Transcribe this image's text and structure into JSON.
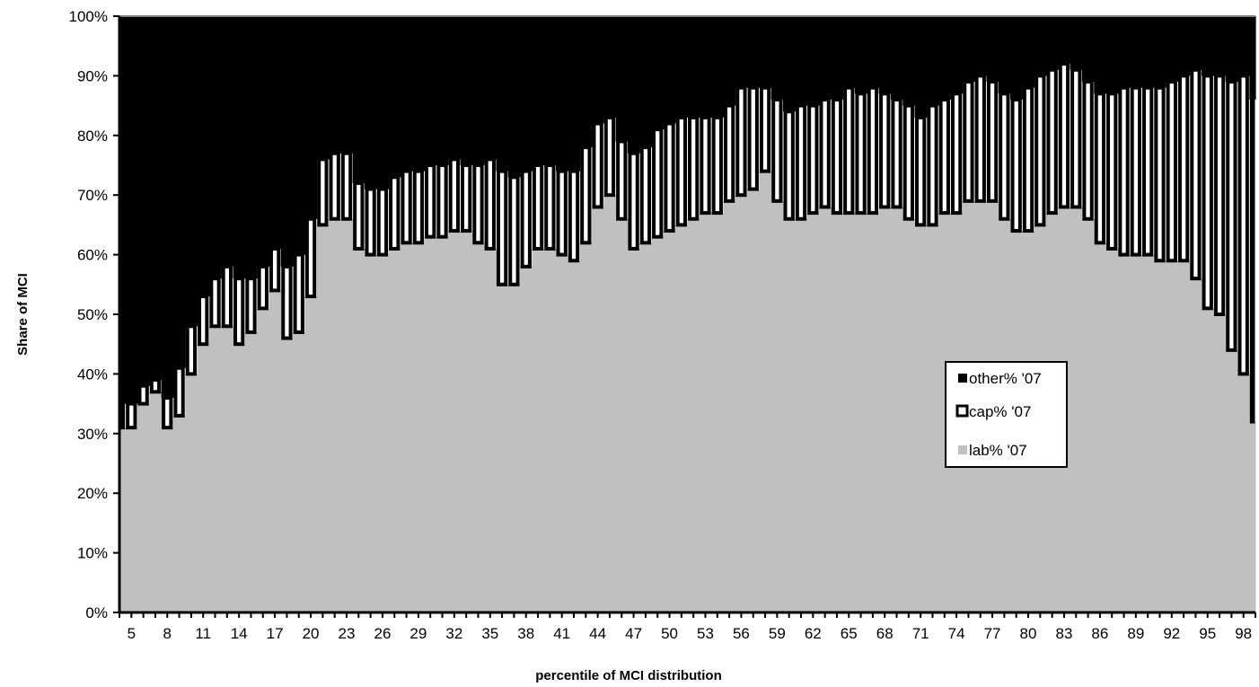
{
  "chart_data": {
    "type": "area",
    "stacked": true,
    "percent": true,
    "xlabel": "percentile of MCI distribution",
    "ylabel": "Share of MCI",
    "ylim": [
      0,
      100
    ],
    "y_ticks": [
      "0%",
      "10%",
      "20%",
      "30%",
      "40%",
      "50%",
      "60%",
      "70%",
      "80%",
      "90%",
      "100%"
    ],
    "x_ticks": [
      "5",
      "8",
      "11",
      "14",
      "17",
      "20",
      "23",
      "26",
      "29",
      "32",
      "35",
      "38",
      "41",
      "44",
      "47",
      "50",
      "53",
      "56",
      "59",
      "62",
      "65",
      "68",
      "71",
      "74",
      "77",
      "80",
      "83",
      "86",
      "89",
      "92",
      "95",
      "98"
    ],
    "x": [
      4,
      5,
      6,
      7,
      8,
      9,
      10,
      11,
      12,
      13,
      14,
      15,
      16,
      17,
      18,
      19,
      20,
      21,
      22,
      23,
      24,
      25,
      26,
      27,
      28,
      29,
      30,
      31,
      32,
      33,
      34,
      35,
      36,
      37,
      38,
      39,
      40,
      41,
      42,
      43,
      44,
      45,
      46,
      47,
      48,
      49,
      50,
      51,
      52,
      53,
      54,
      55,
      56,
      57,
      58,
      59,
      60,
      61,
      62,
      63,
      64,
      65,
      66,
      67,
      68,
      69,
      70,
      71,
      72,
      73,
      74,
      75,
      76,
      77,
      78,
      79,
      80,
      81,
      82,
      83,
      84,
      85,
      86,
      87,
      88,
      89,
      90,
      91,
      92,
      93,
      94,
      95,
      96,
      97,
      98,
      99
    ],
    "grid": false,
    "legend_position": "right",
    "series": [
      {
        "name": "lab% '07",
        "color": "#c0c0c0",
        "values": [
          31,
          31,
          35,
          37,
          31,
          33,
          40,
          45,
          48,
          48,
          45,
          47,
          51,
          54,
          46,
          47,
          53,
          65,
          66,
          66,
          61,
          60,
          60,
          61,
          62,
          62,
          63,
          63,
          64,
          64,
          62,
          61,
          55,
          55,
          58,
          61,
          61,
          60,
          59,
          62,
          68,
          70,
          66,
          61,
          62,
          63,
          64,
          65,
          66,
          67,
          67,
          69,
          70,
          71,
          74,
          69,
          66,
          66,
          67,
          68,
          67,
          67,
          67,
          67,
          68,
          68,
          66,
          65,
          65,
          67,
          67,
          69,
          69,
          69,
          66,
          64,
          64,
          65,
          67,
          68,
          68,
          66,
          62,
          61,
          60,
          60,
          60,
          59,
          59,
          59,
          56,
          51,
          50,
          44,
          40,
          32
        ]
      },
      {
        "name": "cap% '07",
        "color": "#ffffff",
        "values": [
          4,
          4,
          3,
          2,
          5,
          8,
          8,
          8,
          8,
          10,
          11,
          9,
          7,
          7,
          12,
          13,
          13,
          11,
          11,
          11,
          11,
          11,
          11,
          12,
          12,
          12,
          12,
          12,
          12,
          11,
          13,
          15,
          19,
          18,
          16,
          14,
          14,
          14,
          15,
          16,
          14,
          13,
          13,
          16,
          16,
          18,
          18,
          18,
          17,
          16,
          16,
          16,
          18,
          17,
          14,
          17,
          18,
          19,
          18,
          18,
          19,
          21,
          20,
          21,
          19,
          18,
          19,
          18,
          20,
          19,
          20,
          20,
          21,
          20,
          21,
          22,
          24,
          25,
          24,
          24,
          23,
          23,
          25,
          26,
          28,
          28,
          28,
          29,
          30,
          31,
          35,
          39,
          40,
          45,
          50,
          54
        ]
      },
      {
        "name": "other% '07",
        "color": "#000000",
        "values": [
          65,
          65,
          62,
          61,
          64,
          59,
          52,
          47,
          44,
          42,
          44,
          44,
          42,
          39,
          42,
          40,
          34,
          24,
          23,
          23,
          28,
          29,
          29,
          27,
          26,
          26,
          25,
          25,
          24,
          25,
          25,
          24,
          26,
          27,
          26,
          25,
          25,
          26,
          26,
          22,
          18,
          17,
          21,
          23,
          22,
          19,
          18,
          17,
          17,
          17,
          17,
          15,
          12,
          12,
          12,
          14,
          16,
          15,
          15,
          14,
          14,
          12,
          13,
          12,
          13,
          14,
          15,
          17,
          15,
          14,
          13,
          11,
          10,
          11,
          13,
          14,
          12,
          10,
          9,
          8,
          9,
          11,
          13,
          13,
          12,
          12,
          12,
          12,
          11,
          10,
          9,
          10,
          10,
          11,
          10,
          14
        ]
      }
    ]
  }
}
